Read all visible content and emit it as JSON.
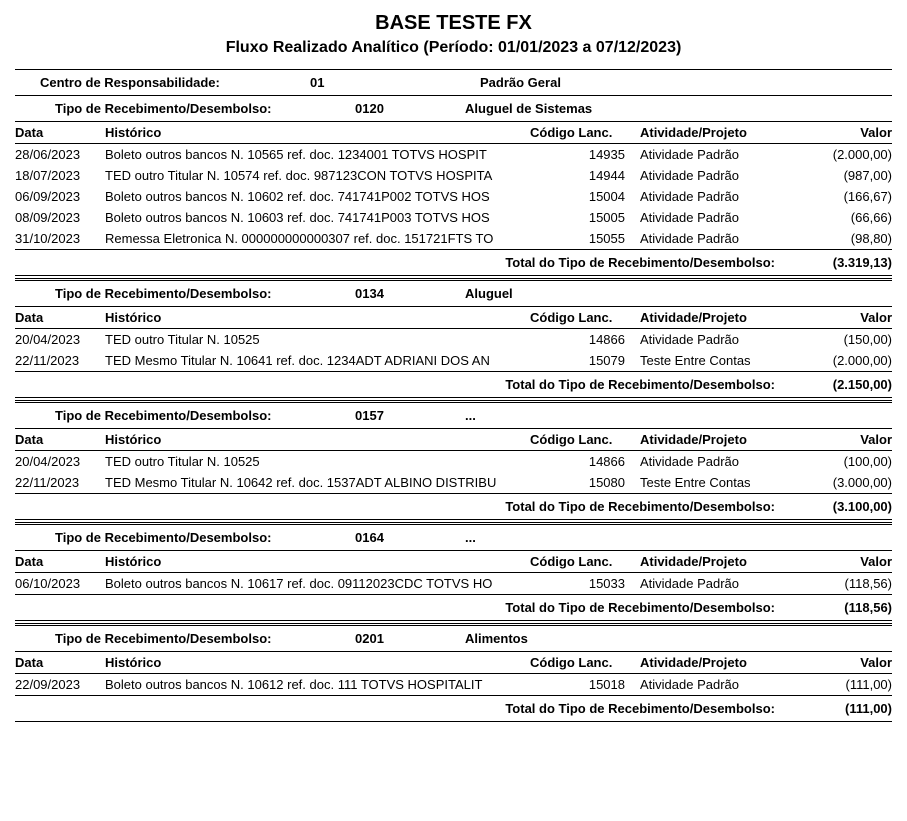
{
  "report": {
    "title": "BASE TESTE FX",
    "subtitle": "Fluxo Realizado Analítico (Período: 01/01/2023 a 07/12/2023)"
  },
  "centro": {
    "label": "Centro de Responsabilidade:",
    "code": "01",
    "desc": "Padrão Geral"
  },
  "labels": {
    "tipo": "Tipo de Recebimento/Desembolso:",
    "data": "Data",
    "historico": "Histórico",
    "codigo": "Código Lanc.",
    "atividade": "Atividade/Projeto",
    "valor": "Valor",
    "total": "Total do Tipo de Recebimento/Desembolso:"
  },
  "groups": [
    {
      "code": "0120",
      "desc": "Aluguel de Sistemas",
      "rows": [
        {
          "data": "28/06/2023",
          "hist": "Boleto outros bancos N. 10565 ref. doc. 1234001 TOTVS HOSPIT",
          "cod": "14935",
          "ativ": "Atividade Padrão",
          "valor": "(2.000,00)"
        },
        {
          "data": "18/07/2023",
          "hist": "TED outro Titular N. 10574 ref. doc. 987123CON TOTVS HOSPITA",
          "cod": "14944",
          "ativ": "Atividade Padrão",
          "valor": "(987,00)"
        },
        {
          "data": "06/09/2023",
          "hist": "Boleto outros bancos N. 10602 ref. doc. 741741P002 TOTVS HOS",
          "cod": "15004",
          "ativ": "Atividade Padrão",
          "valor": "(166,67)"
        },
        {
          "data": "08/09/2023",
          "hist": "Boleto outros bancos N. 10603 ref. doc. 741741P003 TOTVS HOS",
          "cod": "15005",
          "ativ": "Atividade Padrão",
          "valor": "(66,66)"
        },
        {
          "data": "31/10/2023",
          "hist": "Remessa Eletronica N. 000000000000307 ref. doc. 151721FTS TO",
          "cod": "15055",
          "ativ": "Atividade Padrão",
          "valor": "(98,80)"
        }
      ],
      "total": "(3.319,13)"
    },
    {
      "code": "0134",
      "desc": "Aluguel",
      "rows": [
        {
          "data": "20/04/2023",
          "hist": "TED outro Titular N. 10525",
          "cod": "14866",
          "ativ": "Atividade Padrão",
          "valor": "(150,00)"
        },
        {
          "data": "22/11/2023",
          "hist": "TED Mesmo Titular N. 10641 ref. doc. 1234ADT ADRIANI DOS AN",
          "cod": "15079",
          "ativ": "Teste Entre Contas",
          "valor": "(2.000,00)"
        }
      ],
      "total": "(2.150,00)"
    },
    {
      "code": "0157",
      "desc": "...",
      "rows": [
        {
          "data": "20/04/2023",
          "hist": "TED outro Titular N. 10525",
          "cod": "14866",
          "ativ": "Atividade Padrão",
          "valor": "(100,00)"
        },
        {
          "data": "22/11/2023",
          "hist": "TED Mesmo Titular N. 10642 ref. doc. 1537ADT ALBINO DISTRIBU",
          "cod": "15080",
          "ativ": "Teste Entre Contas",
          "valor": "(3.000,00)"
        }
      ],
      "total": "(3.100,00)"
    },
    {
      "code": "0164",
      "desc": "...",
      "rows": [
        {
          "data": "06/10/2023",
          "hist": "Boleto outros bancos N. 10617 ref. doc. 09112023CDC TOTVS HO",
          "cod": "15033",
          "ativ": "Atividade Padrão",
          "valor": "(118,56)"
        }
      ],
      "total": "(118,56)"
    },
    {
      "code": "0201",
      "desc": "Alimentos",
      "rows": [
        {
          "data": "22/09/2023",
          "hist": "Boleto outros bancos N. 10612 ref. doc. 111 TOTVS HOSPITALIT",
          "cod": "15018",
          "ativ": "Atividade Padrão",
          "valor": "(111,00)"
        }
      ],
      "total": "(111,00)"
    }
  ]
}
